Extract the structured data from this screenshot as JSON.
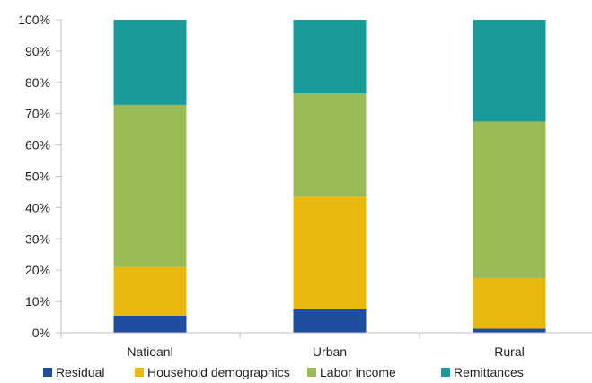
{
  "chart_data": {
    "type": "bar",
    "stacked": true,
    "percent": true,
    "title": "",
    "xlabel": "",
    "ylabel": "",
    "ylim": [
      0,
      100
    ],
    "yticks": [
      "0%",
      "10%",
      "20%",
      "30%",
      "40%",
      "50%",
      "60%",
      "70%",
      "80%",
      "90%",
      "100%"
    ],
    "categories": [
      "Natioanl",
      "Urban",
      "Rural"
    ],
    "series": [
      {
        "name": "Residual",
        "color": "#1f4e9e",
        "values": [
          5.5,
          7.5,
          1.3
        ]
      },
      {
        "name": "Household demographics",
        "color": "#ebb80e",
        "values": [
          15.5,
          36,
          16.2
        ]
      },
      {
        "name": "Labor income",
        "color": "#9bbb59",
        "values": [
          51.8,
          33,
          50
        ]
      },
      {
        "name": "Remittances",
        "color": "#1a9a9a",
        "values": [
          27.2,
          23.5,
          32.5
        ]
      }
    ],
    "legend": "bottom",
    "grid": false
  }
}
